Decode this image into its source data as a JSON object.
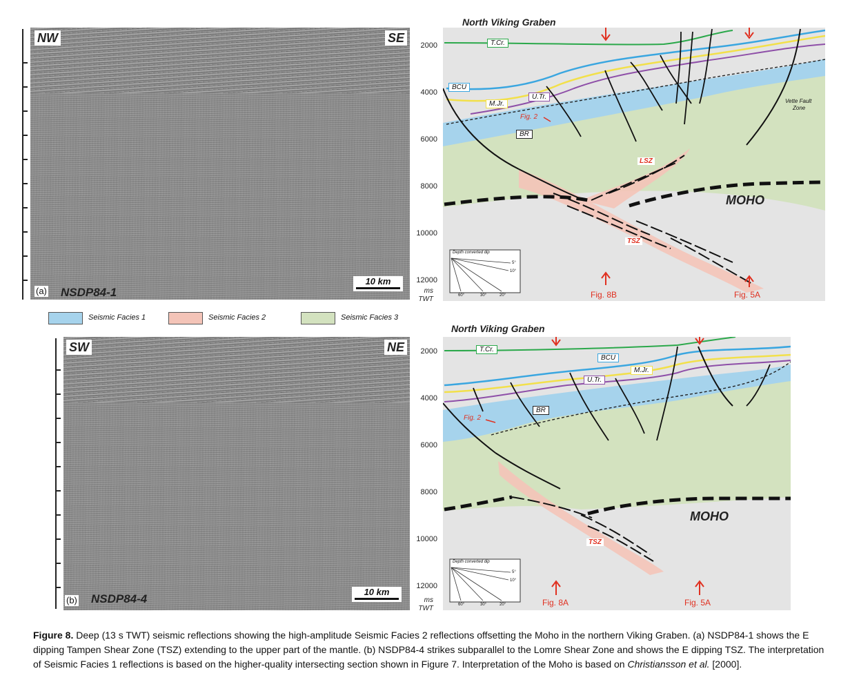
{
  "panel_a": {
    "left_dir": "NW",
    "right_dir": "SE",
    "letter": "(a)",
    "survey": "NSDP84-1",
    "scale": "10 km",
    "interp_title": "North Viking Graben",
    "depth_labels": [
      "2000",
      "4000",
      "6000",
      "8000",
      "10000",
      "12000"
    ],
    "unit_ms": "ms",
    "unit_twt": "TWT",
    "horizons": {
      "tcr": "T.Cr.",
      "bcu": "BCU",
      "mjr": "M.Jr.",
      "utr": "U.Tr.",
      "br": "BR"
    },
    "labels": {
      "fig2": "Fig. 2",
      "lsz": "LSZ",
      "tsz": "TSZ",
      "moho": "MOHO",
      "vette": "Vette Fault",
      "vette2": "Zone"
    },
    "arrows": {
      "fig8": "Fig. 8B",
      "fig5": "Fig. 5A"
    },
    "dip_inset": {
      "title": "Depth converted dip",
      "d5": "5°",
      "d10": "10°",
      "d60": "60°",
      "d30": "30°",
      "d20": "20°"
    }
  },
  "legend": [
    {
      "label": "Seismic Facies 1",
      "color": "#a6d3ec"
    },
    {
      "label": "Seismic Facies 2",
      "color": "#f4c4b8"
    },
    {
      "label": "Seismic Facies 3",
      "color": "#d3e2bf"
    }
  ],
  "panel_b": {
    "left_dir": "SW",
    "right_dir": "NE",
    "letter": "(b)",
    "survey": "NSDP84-4",
    "scale": "10 km",
    "interp_title": "North Viking Graben",
    "depth_labels": [
      "2000",
      "4000",
      "6000",
      "8000",
      "10000",
      "12000"
    ],
    "unit_ms": "ms",
    "unit_twt": "TWT",
    "horizons": {
      "tcr": "T.Cr.",
      "bcu": "BCU",
      "mjr": "M.Jr.",
      "utr": "U.Tr.",
      "br": "BR"
    },
    "labels": {
      "fig2": "Fig. 2",
      "tsz": "TSZ",
      "moho": "MOHO"
    },
    "arrows": {
      "fig8": "Fig. 8A",
      "fig5": "Fig. 5A"
    },
    "dip_inset": {
      "title": "Depth converted dip",
      "d5": "5°",
      "d10": "10°",
      "d60": "60°",
      "d30": "30°",
      "d20": "20°"
    }
  },
  "colors": {
    "tcr": "#2aa84a",
    "bcu": "#3aa6e0",
    "mjr": "#f2e04a",
    "utr": "#8e4fa8",
    "annot": "#e03020"
  },
  "caption": {
    "lead": "Figure 8.",
    "text1": " Deep (13 s TWT) seismic reflections showing the high-amplitude Seismic Facies 2 reflections offsetting the Moho in the northern Viking Graben. (a) NSDP84-1 shows the E dipping Tampen Shear Zone (TSZ) extending to the upper part of the mantle. (b) NSDP84-4 strikes subparallel to the Lomre Shear Zone and shows the E dipping TSZ. The interpretation of Seismic Facies 1 reflections is based on the higher-quality intersecting section shown in Figure 7. Interpretation of the Moho is based on ",
    "ref": "Christiansson et al.",
    "text2": " [2000]."
  }
}
